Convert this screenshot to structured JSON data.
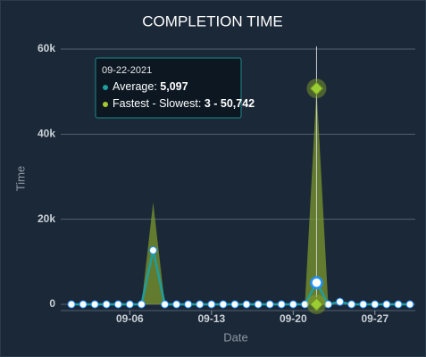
{
  "chart_data": {
    "type": "line-range",
    "title": "COMPLETION TIME",
    "x_label": "Date",
    "y_label": "Time",
    "categories": [
      null,
      null,
      null,
      null,
      null,
      "09-06",
      null,
      null,
      null,
      null,
      null,
      null,
      "09-13",
      null,
      null,
      null,
      null,
      null,
      null,
      "09-20",
      null,
      null,
      null,
      null,
      null,
      null,
      "09-27",
      null,
      null,
      null
    ],
    "values": [
      0,
      0,
      0,
      0,
      0,
      0,
      0,
      12700,
      0,
      0,
      0,
      0,
      0,
      0,
      0,
      0,
      0,
      0,
      0,
      0,
      0,
      5097,
      0,
      600,
      0,
      0,
      0,
      0,
      0,
      0
    ],
    "value_color": "#1f9e9e",
    "range": {
      "low": [
        0,
        0,
        0,
        0,
        0,
        0,
        0,
        0,
        0,
        0,
        0,
        0,
        0,
        0,
        0,
        0,
        0,
        0,
        0,
        0,
        0,
        3,
        0,
        0,
        0,
        0,
        0,
        0,
        0,
        0
      ],
      "high": [
        0,
        0,
        0,
        0,
        0,
        0,
        0,
        24000,
        0,
        0,
        0,
        0,
        0,
        0,
        0,
        0,
        0,
        0,
        0,
        0,
        0,
        50742,
        0,
        0,
        0,
        0,
        0,
        0,
        0,
        0
      ],
      "color": "#8aa82a"
    },
    "ylim": [
      0,
      60000
    ],
    "yticks": [
      0,
      {
        "value": 20000,
        "label": "20k"
      },
      {
        "value": 40000,
        "label": "40k"
      },
      {
        "value": 60000,
        "label": "60k"
      }
    ],
    "grid": true,
    "tooltip": {
      "title": "09-22-2021",
      "items": [
        {
          "label": "Average:",
          "value": "5,097"
        },
        {
          "label": "Fastest - Slowest:",
          "value": "3 - 50,742"
        }
      ]
    }
  }
}
